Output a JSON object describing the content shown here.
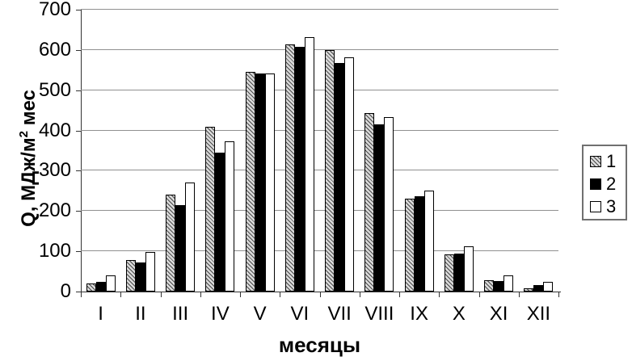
{
  "chart_data": {
    "type": "bar",
    "title": "",
    "xlabel": "месяцы",
    "ylabel": "Q, МДж/м² мес",
    "ylabel_parts": {
      "prefix": "Q, МДж/м",
      "sup": "2",
      "suffix": " мес"
    },
    "categories": [
      "I",
      "II",
      "III",
      "IV",
      "V",
      "VI",
      "VII",
      "VIII",
      "IX",
      "X",
      "XI",
      "XII"
    ],
    "series": [
      {
        "name": "1",
        "style": "hatched",
        "values": [
          20,
          78,
          240,
          410,
          545,
          613,
          600,
          444,
          231,
          92,
          28,
          8
        ]
      },
      {
        "name": "2",
        "style": "black",
        "values": [
          25,
          73,
          215,
          345,
          541,
          607,
          568,
          416,
          237,
          95,
          27,
          17
        ]
      },
      {
        "name": "3",
        "style": "white",
        "values": [
          40,
          98,
          270,
          373,
          541,
          632,
          582,
          433,
          251,
          113,
          40,
          24
        ]
      }
    ],
    "ylim": [
      0,
      700
    ],
    "ytick_step": 100,
    "yticks": [
      "0",
      "100",
      "200",
      "300",
      "400",
      "500",
      "600",
      "700"
    ],
    "grid": true,
    "legend_position": "right",
    "legend_labels": [
      "1",
      "2",
      "3"
    ]
  },
  "colors": {
    "background": "#ffffff",
    "text": "#000000",
    "grid": "#909090",
    "axis": "#333333",
    "bar_hatch_bg": "#d9d9d9",
    "bar_hatch_line": "#4a4a4a",
    "bar_black": "#000000",
    "bar_white": "#ffffff",
    "legend_border": "#707070"
  }
}
